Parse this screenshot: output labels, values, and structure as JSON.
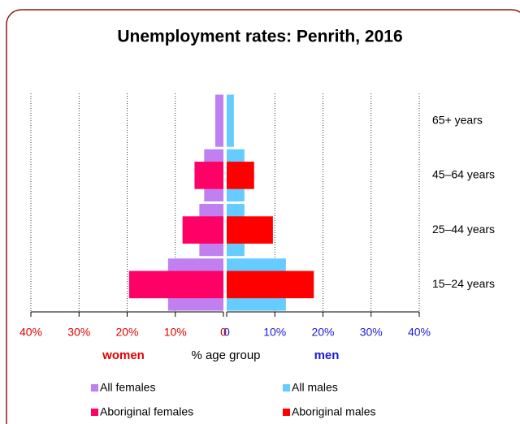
{
  "chart_data": {
    "type": "pyramid",
    "title": "Unemployment rates: Penrith, 2016",
    "categories": [
      "65+ years",
      "45–64 years",
      "25–44 years",
      "15–24 years"
    ],
    "series": [
      {
        "name": "All females",
        "color": "#c080f0",
        "side": "left",
        "layer": "back",
        "values": [
          1.7,
          4,
          5,
          11.5
        ]
      },
      {
        "name": "Aboriginal females",
        "color": "#ff0066",
        "side": "left",
        "layer": "front",
        "values": [
          null,
          6,
          8.5,
          19.6
        ]
      },
      {
        "name": "All males",
        "color": "#66ccff",
        "side": "right",
        "layer": "back",
        "values": [
          1.5,
          3.7,
          3.7,
          12.3
        ]
      },
      {
        "name": "Aboriginal males",
        "color": "#ff0000",
        "side": "right",
        "layer": "front",
        "values": [
          null,
          5.7,
          9.6,
          18.1
        ]
      }
    ],
    "xlim": [
      0,
      40
    ],
    "xticks": [
      0,
      {
        "value": 10,
        "label": "10%"
      },
      {
        "value": 20,
        "label": "20%"
      },
      {
        "value": 30,
        "label": "30%"
      },
      {
        "value": 40,
        "label": "40%"
      }
    ],
    "left_label": "women",
    "xlabel": "% age group",
    "right_label": "men",
    "grid": true
  }
}
